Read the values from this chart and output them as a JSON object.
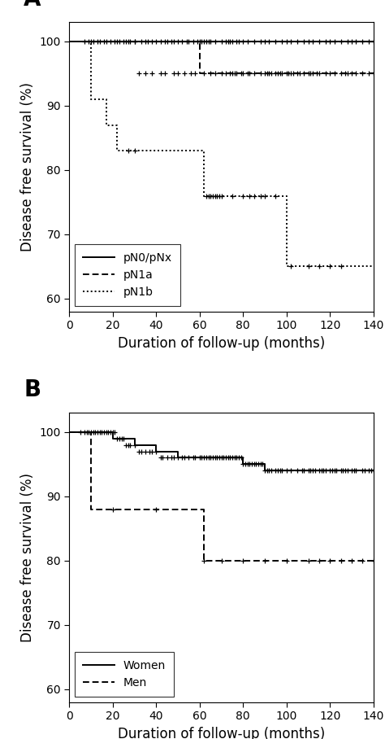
{
  "panel_A_label": "A",
  "panel_B_label": "B",
  "xlabel": "Duration of follow-up (months)",
  "ylabel": "Disease free survival (%)",
  "xlim": [
    0,
    140
  ],
  "ylim": [
    58,
    103
  ],
  "xticks": [
    0,
    20,
    40,
    60,
    80,
    100,
    120,
    140
  ],
  "yticks": [
    60,
    70,
    80,
    90,
    100
  ],
  "line_color": "black",
  "A_pN0_steps": {
    "x": [
      0,
      140
    ],
    "y": [
      100,
      100
    ],
    "linestyle": "solid",
    "censors_x": [
      7,
      9,
      10,
      11,
      13,
      14,
      16,
      17,
      19,
      21,
      22,
      23,
      25,
      27,
      28,
      30,
      33,
      35,
      36,
      38,
      40,
      42,
      44,
      45,
      47,
      48,
      50,
      52,
      54,
      55,
      57,
      59,
      60,
      61,
      62,
      63,
      64,
      65,
      67,
      70,
      72,
      73,
      74,
      75,
      77,
      78,
      80,
      82,
      85,
      88,
      90,
      92,
      95,
      98,
      100,
      102,
      105,
      108,
      110,
      112,
      115,
      118,
      120,
      122,
      125,
      128,
      130,
      132,
      135,
      138,
      140
    ],
    "censors_y": [
      100,
      100,
      100,
      100,
      100,
      100,
      100,
      100,
      100,
      100,
      100,
      100,
      100,
      100,
      100,
      100,
      100,
      100,
      100,
      100,
      100,
      100,
      100,
      100,
      100,
      100,
      100,
      100,
      100,
      100,
      100,
      100,
      100,
      100,
      100,
      100,
      100,
      100,
      100,
      100,
      100,
      100,
      100,
      100,
      100,
      100,
      100,
      100,
      100,
      100,
      100,
      100,
      100,
      100,
      100,
      100,
      100,
      100,
      100,
      100,
      100,
      100,
      100,
      100,
      100,
      100,
      100,
      100,
      100,
      100,
      100
    ]
  },
  "A_pN1a_steps": {
    "x": [
      0,
      60,
      60,
      65,
      65,
      140
    ],
    "y": [
      100,
      100,
      95,
      95,
      95,
      95
    ],
    "linestyle": "dashed",
    "censors_x": [
      26,
      30,
      32,
      35,
      38,
      42,
      44,
      48,
      50,
      53,
      56,
      58,
      62,
      65,
      67,
      70,
      72,
      74,
      75,
      76,
      77,
      79,
      80,
      82,
      83,
      85,
      88,
      90,
      91,
      92,
      93,
      95,
      96,
      97,
      98,
      100,
      101,
      102,
      103,
      105,
      106,
      108,
      110,
      111,
      112,
      114,
      115,
      118,
      120,
      122,
      125,
      127,
      128,
      130,
      132,
      135,
      138,
      140
    ],
    "censors_y": [
      100,
      100,
      95,
      95,
      95,
      95,
      95,
      95,
      95,
      95,
      95,
      95,
      95,
      95,
      95,
      95,
      95,
      95,
      95,
      95,
      95,
      95,
      95,
      95,
      95,
      95,
      95,
      95,
      95,
      95,
      95,
      95,
      95,
      95,
      95,
      95,
      95,
      95,
      95,
      95,
      95,
      95,
      95,
      95,
      95,
      95,
      95,
      95,
      95,
      95,
      95,
      95,
      95,
      95,
      95,
      95,
      95,
      95
    ]
  },
  "A_pN1b_steps": {
    "x": [
      0,
      10,
      10,
      17,
      17,
      22,
      22,
      27,
      27,
      62,
      62,
      100,
      100,
      140
    ],
    "y": [
      100,
      100,
      91,
      91,
      87,
      87,
      83,
      83,
      83,
      83,
      76,
      76,
      65,
      65
    ],
    "linestyle": "dotted",
    "censors_x": [
      27,
      30,
      63,
      64,
      65,
      66,
      67,
      68,
      69,
      70,
      75,
      80,
      83,
      85,
      88,
      90,
      95,
      102,
      110,
      115,
      120,
      125
    ],
    "censors_y": [
      83,
      83,
      76,
      76,
      76,
      76,
      76,
      76,
      76,
      76,
      76,
      76,
      76,
      76,
      76,
      76,
      76,
      65,
      65,
      65,
      65,
      65
    ]
  },
  "A_legend_labels": [
    "pN0/pNx",
    "pN1a",
    "pN1b"
  ],
  "A_legend_linestyles": [
    "solid",
    "dashed",
    "dotted"
  ],
  "B_women_steps": {
    "x": [
      0,
      5,
      5,
      10,
      10,
      15,
      15,
      20,
      20,
      30,
      30,
      40,
      40,
      50,
      50,
      60,
      60,
      70,
      70,
      80,
      80,
      90,
      90,
      100,
      100,
      110,
      110,
      120,
      120,
      130,
      130,
      140
    ],
    "y": [
      100,
      100,
      100,
      100,
      100,
      100,
      100,
      100,
      99,
      99,
      98,
      98,
      97,
      97,
      96,
      96,
      96,
      96,
      96,
      96,
      95,
      95,
      94,
      94,
      94,
      94,
      94,
      94,
      94,
      94,
      94,
      94
    ],
    "linestyle": "solid",
    "censors_x": [
      5,
      7,
      8,
      9,
      10,
      11,
      12,
      13,
      14,
      15,
      16,
      17,
      18,
      19,
      20,
      21,
      22,
      23,
      24,
      25,
      26,
      27,
      28,
      30,
      32,
      33,
      35,
      37,
      38,
      40,
      42,
      43,
      45,
      47,
      48,
      50,
      52,
      53,
      55,
      57,
      58,
      60,
      61,
      62,
      63,
      64,
      65,
      66,
      67,
      68,
      69,
      70,
      71,
      72,
      73,
      74,
      75,
      76,
      77,
      78,
      79,
      80,
      81,
      82,
      83,
      84,
      85,
      86,
      87,
      88,
      89,
      90,
      91,
      92,
      93,
      95,
      96,
      97,
      98,
      100,
      102,
      105,
      107,
      108,
      110,
      111,
      112,
      113,
      115,
      116,
      117,
      118,
      120,
      121,
      122,
      123,
      125,
      126,
      127,
      128,
      130,
      131,
      132,
      135,
      136,
      138,
      139,
      140
    ],
    "censors_y": [
      100,
      100,
      100,
      100,
      100,
      100,
      100,
      100,
      100,
      100,
      100,
      100,
      100,
      100,
      100,
      100,
      99,
      99,
      99,
      99,
      98,
      98,
      98,
      98,
      97,
      97,
      97,
      97,
      97,
      97,
      96,
      96,
      96,
      96,
      96,
      96,
      96,
      96,
      96,
      96,
      96,
      96,
      96,
      96,
      96,
      96,
      96,
      96,
      96,
      96,
      96,
      96,
      96,
      96,
      96,
      96,
      96,
      96,
      96,
      96,
      96,
      95,
      95,
      95,
      95,
      95,
      95,
      95,
      95,
      95,
      95,
      94,
      94,
      94,
      94,
      94,
      94,
      94,
      94,
      94,
      94,
      94,
      94,
      94,
      94,
      94,
      94,
      94,
      94,
      94,
      94,
      94,
      94,
      94,
      94,
      94,
      94,
      94,
      94,
      94,
      94,
      94,
      94,
      94,
      94,
      94,
      94,
      94
    ]
  },
  "B_men_steps": {
    "x": [
      0,
      10,
      10,
      15,
      15,
      62,
      62,
      65,
      65,
      140
    ],
    "y": [
      100,
      100,
      88,
      88,
      88,
      88,
      80,
      80,
      80,
      80
    ],
    "linestyle": "dashed",
    "censors_x": [
      20,
      40,
      62,
      70,
      80,
      90,
      100,
      110,
      115,
      120,
      125,
      130,
      135,
      140
    ],
    "censors_y": [
      88,
      88,
      80,
      80,
      80,
      80,
      80,
      80,
      80,
      80,
      80,
      80,
      80,
      80
    ]
  },
  "B_legend_labels": [
    "Women",
    "Men"
  ],
  "B_legend_linestyles": [
    "solid",
    "dashed"
  ],
  "bg_color": "white",
  "font_size_label": 12,
  "font_size_tick": 10,
  "lw": 1.4
}
